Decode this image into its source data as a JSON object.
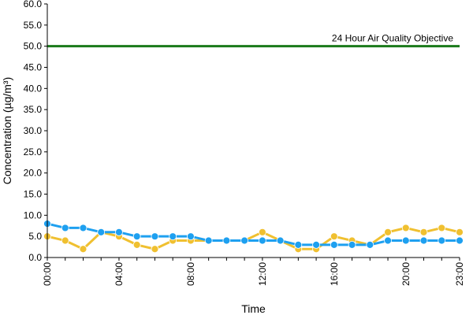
{
  "chart_data": {
    "type": "line",
    "xlabel": "Time",
    "ylabel": "Concentration (µg/m³)",
    "ylim": [
      0,
      60
    ],
    "y_ticks": [
      "0.0",
      "5.0",
      "10.0",
      "15.0",
      "20.0",
      "25.0",
      "30.0",
      "35.0",
      "40.0",
      "45.0",
      "50.0",
      "55.0",
      "60.0"
    ],
    "x": [
      "00:00",
      "01:00",
      "02:00",
      "03:00",
      "04:00",
      "05:00",
      "06:00",
      "07:00",
      "08:00",
      "09:00",
      "10:00",
      "11:00",
      "12:00",
      "13:00",
      "14:00",
      "15:00",
      "16:00",
      "17:00",
      "18:00",
      "19:00",
      "20:00",
      "21:00",
      "22:00",
      "23:00"
    ],
    "x_ticks": [
      "00:00",
      "04:00",
      "08:00",
      "12:00",
      "16:00",
      "20:00",
      "23:00"
    ],
    "series": [
      {
        "color": "#f0c030",
        "values": [
          5,
          4,
          2,
          6,
          5,
          3,
          2,
          4,
          4,
          4,
          4,
          4,
          6,
          4,
          2,
          2,
          5,
          4,
          3,
          6,
          7,
          6,
          7,
          6
        ]
      },
      {
        "color": "#1ea0f0",
        "values": [
          8,
          7,
          7,
          6,
          6,
          5,
          5,
          5,
          5,
          4,
          4,
          4,
          4,
          4,
          3,
          3,
          3,
          3,
          3,
          4,
          4,
          4,
          4,
          4
        ]
      }
    ],
    "reference_line": {
      "value": 50,
      "label": "24 Hour Air Quality Objective",
      "color": "#1a7a1a"
    },
    "grid": false
  }
}
